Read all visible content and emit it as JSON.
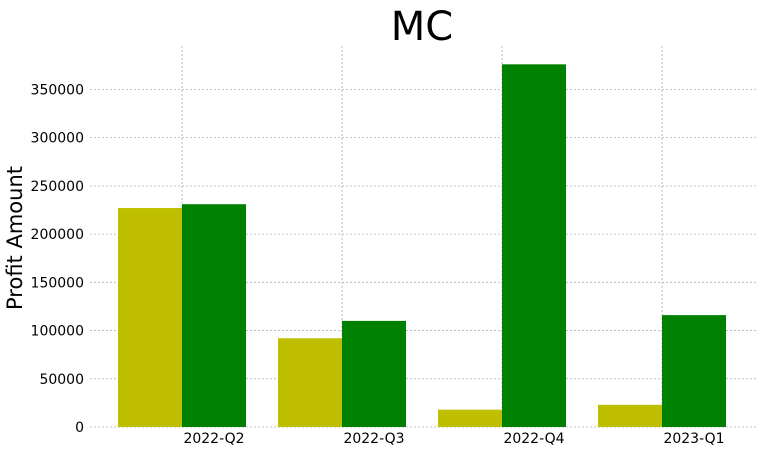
{
  "chart_data": {
    "type": "bar",
    "title": "MC",
    "xlabel": "",
    "ylabel": "Profit Amount",
    "categories": [
      "2022-Q2",
      "2022-Q3",
      "2022-Q4",
      "2023-Q1"
    ],
    "series": [
      {
        "color": "#bfbf00",
        "values": [
          227000,
          92000,
          18000,
          23000
        ]
      },
      {
        "color": "#008000",
        "values": [
          231000,
          110000,
          376000,
          116000
        ]
      }
    ],
    "yticks": [
      0,
      50000,
      100000,
      150000,
      200000,
      250000,
      300000,
      350000
    ],
    "ylim": [
      0,
      395000
    ],
    "grid": true,
    "legend": "none"
  }
}
